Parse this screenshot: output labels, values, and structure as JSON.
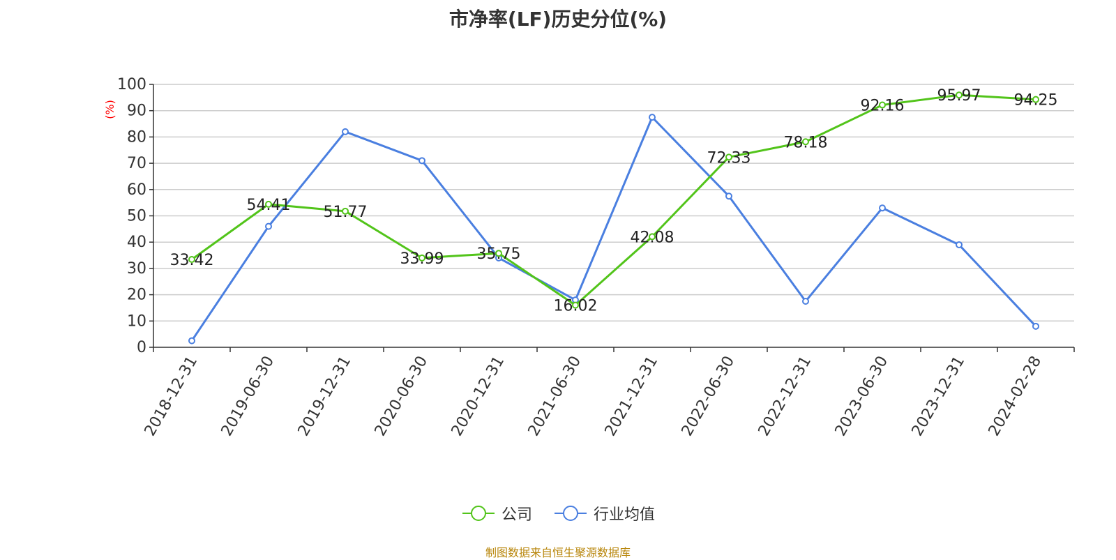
{
  "chart_data": {
    "type": "line",
    "title": "市净率(LF)历史分位(%)",
    "ylabel": "(%)",
    "categories": [
      "2018-12-31",
      "2019-06-30",
      "2019-12-31",
      "2020-06-30",
      "2020-12-31",
      "2021-06-30",
      "2021-12-31",
      "2022-06-30",
      "2022-12-31",
      "2023-06-30",
      "2023-12-31",
      "2024-02-28"
    ],
    "ylim": [
      0,
      100
    ],
    "yticks": [
      0,
      10,
      20,
      30,
      40,
      50,
      60,
      70,
      80,
      90,
      100
    ],
    "grid": true,
    "legend_position": "bottom",
    "series": [
      {
        "name": "公司",
        "color": "#52c41a",
        "values": [
          33.42,
          54.41,
          51.77,
          33.99,
          35.75,
          16.02,
          42.08,
          72.33,
          78.18,
          92.16,
          95.97,
          94.25
        ],
        "labels": [
          "33.42",
          "54.41",
          "51.77",
          "33.99",
          "35.75",
          "16.02",
          "42.08",
          "72.33",
          "78.18",
          "92.16",
          "95.97",
          "94.25"
        ]
      },
      {
        "name": "行业均值",
        "color": "#4a7fe0",
        "values": [
          2.5,
          46,
          82,
          71,
          34,
          18,
          87.5,
          57.5,
          17.5,
          53,
          39,
          8
        ]
      }
    ]
  },
  "source_text": "制图数据来自恒生聚源数据库",
  "ylabel_color": "#ff0000",
  "source_color": "#b8860b"
}
